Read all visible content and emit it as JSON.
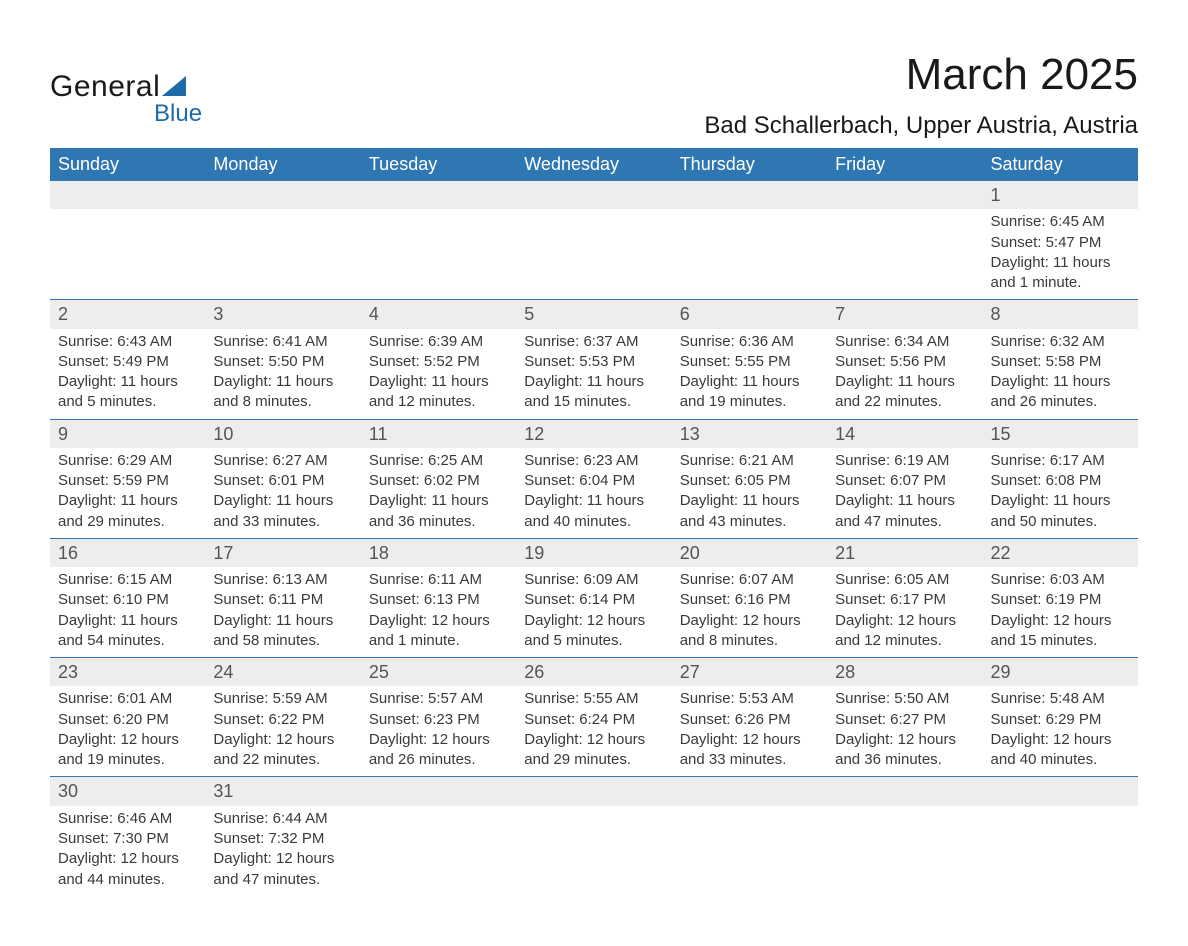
{
  "logo": {
    "text_top": "General",
    "text_sub": "Blue"
  },
  "title": "March 2025",
  "location": "Bad Schallerbach, Upper Austria, Austria",
  "colors": {
    "header_bg": "#2e77b3",
    "header_text": "#ffffff",
    "daynum_bg": "#ededed",
    "row_border": "#2e77b3",
    "text": "#3a3a3a",
    "logo_blue": "#1c6ba8"
  },
  "day_headers": [
    "Sunday",
    "Monday",
    "Tuesday",
    "Wednesday",
    "Thursday",
    "Friday",
    "Saturday"
  ],
  "weeks": [
    {
      "days": [
        null,
        null,
        null,
        null,
        null,
        null,
        {
          "n": "1",
          "sunrise": "Sunrise: 6:45 AM",
          "sunset": "Sunset: 5:47 PM",
          "dl1": "Daylight: 11 hours",
          "dl2": "and 1 minute."
        }
      ]
    },
    {
      "days": [
        {
          "n": "2",
          "sunrise": "Sunrise: 6:43 AM",
          "sunset": "Sunset: 5:49 PM",
          "dl1": "Daylight: 11 hours",
          "dl2": "and 5 minutes."
        },
        {
          "n": "3",
          "sunrise": "Sunrise: 6:41 AM",
          "sunset": "Sunset: 5:50 PM",
          "dl1": "Daylight: 11 hours",
          "dl2": "and 8 minutes."
        },
        {
          "n": "4",
          "sunrise": "Sunrise: 6:39 AM",
          "sunset": "Sunset: 5:52 PM",
          "dl1": "Daylight: 11 hours",
          "dl2": "and 12 minutes."
        },
        {
          "n": "5",
          "sunrise": "Sunrise: 6:37 AM",
          "sunset": "Sunset: 5:53 PM",
          "dl1": "Daylight: 11 hours",
          "dl2": "and 15 minutes."
        },
        {
          "n": "6",
          "sunrise": "Sunrise: 6:36 AM",
          "sunset": "Sunset: 5:55 PM",
          "dl1": "Daylight: 11 hours",
          "dl2": "and 19 minutes."
        },
        {
          "n": "7",
          "sunrise": "Sunrise: 6:34 AM",
          "sunset": "Sunset: 5:56 PM",
          "dl1": "Daylight: 11 hours",
          "dl2": "and 22 minutes."
        },
        {
          "n": "8",
          "sunrise": "Sunrise: 6:32 AM",
          "sunset": "Sunset: 5:58 PM",
          "dl1": "Daylight: 11 hours",
          "dl2": "and 26 minutes."
        }
      ]
    },
    {
      "days": [
        {
          "n": "9",
          "sunrise": "Sunrise: 6:29 AM",
          "sunset": "Sunset: 5:59 PM",
          "dl1": "Daylight: 11 hours",
          "dl2": "and 29 minutes."
        },
        {
          "n": "10",
          "sunrise": "Sunrise: 6:27 AM",
          "sunset": "Sunset: 6:01 PM",
          "dl1": "Daylight: 11 hours",
          "dl2": "and 33 minutes."
        },
        {
          "n": "11",
          "sunrise": "Sunrise: 6:25 AM",
          "sunset": "Sunset: 6:02 PM",
          "dl1": "Daylight: 11 hours",
          "dl2": "and 36 minutes."
        },
        {
          "n": "12",
          "sunrise": "Sunrise: 6:23 AM",
          "sunset": "Sunset: 6:04 PM",
          "dl1": "Daylight: 11 hours",
          "dl2": "and 40 minutes."
        },
        {
          "n": "13",
          "sunrise": "Sunrise: 6:21 AM",
          "sunset": "Sunset: 6:05 PM",
          "dl1": "Daylight: 11 hours",
          "dl2": "and 43 minutes."
        },
        {
          "n": "14",
          "sunrise": "Sunrise: 6:19 AM",
          "sunset": "Sunset: 6:07 PM",
          "dl1": "Daylight: 11 hours",
          "dl2": "and 47 minutes."
        },
        {
          "n": "15",
          "sunrise": "Sunrise: 6:17 AM",
          "sunset": "Sunset: 6:08 PM",
          "dl1": "Daylight: 11 hours",
          "dl2": "and 50 minutes."
        }
      ]
    },
    {
      "days": [
        {
          "n": "16",
          "sunrise": "Sunrise: 6:15 AM",
          "sunset": "Sunset: 6:10 PM",
          "dl1": "Daylight: 11 hours",
          "dl2": "and 54 minutes."
        },
        {
          "n": "17",
          "sunrise": "Sunrise: 6:13 AM",
          "sunset": "Sunset: 6:11 PM",
          "dl1": "Daylight: 11 hours",
          "dl2": "and 58 minutes."
        },
        {
          "n": "18",
          "sunrise": "Sunrise: 6:11 AM",
          "sunset": "Sunset: 6:13 PM",
          "dl1": "Daylight: 12 hours",
          "dl2": "and 1 minute."
        },
        {
          "n": "19",
          "sunrise": "Sunrise: 6:09 AM",
          "sunset": "Sunset: 6:14 PM",
          "dl1": "Daylight: 12 hours",
          "dl2": "and 5 minutes."
        },
        {
          "n": "20",
          "sunrise": "Sunrise: 6:07 AM",
          "sunset": "Sunset: 6:16 PM",
          "dl1": "Daylight: 12 hours",
          "dl2": "and 8 minutes."
        },
        {
          "n": "21",
          "sunrise": "Sunrise: 6:05 AM",
          "sunset": "Sunset: 6:17 PM",
          "dl1": "Daylight: 12 hours",
          "dl2": "and 12 minutes."
        },
        {
          "n": "22",
          "sunrise": "Sunrise: 6:03 AM",
          "sunset": "Sunset: 6:19 PM",
          "dl1": "Daylight: 12 hours",
          "dl2": "and 15 minutes."
        }
      ]
    },
    {
      "days": [
        {
          "n": "23",
          "sunrise": "Sunrise: 6:01 AM",
          "sunset": "Sunset: 6:20 PM",
          "dl1": "Daylight: 12 hours",
          "dl2": "and 19 minutes."
        },
        {
          "n": "24",
          "sunrise": "Sunrise: 5:59 AM",
          "sunset": "Sunset: 6:22 PM",
          "dl1": "Daylight: 12 hours",
          "dl2": "and 22 minutes."
        },
        {
          "n": "25",
          "sunrise": "Sunrise: 5:57 AM",
          "sunset": "Sunset: 6:23 PM",
          "dl1": "Daylight: 12 hours",
          "dl2": "and 26 minutes."
        },
        {
          "n": "26",
          "sunrise": "Sunrise: 5:55 AM",
          "sunset": "Sunset: 6:24 PM",
          "dl1": "Daylight: 12 hours",
          "dl2": "and 29 minutes."
        },
        {
          "n": "27",
          "sunrise": "Sunrise: 5:53 AM",
          "sunset": "Sunset: 6:26 PM",
          "dl1": "Daylight: 12 hours",
          "dl2": "and 33 minutes."
        },
        {
          "n": "28",
          "sunrise": "Sunrise: 5:50 AM",
          "sunset": "Sunset: 6:27 PM",
          "dl1": "Daylight: 12 hours",
          "dl2": "and 36 minutes."
        },
        {
          "n": "29",
          "sunrise": "Sunrise: 5:48 AM",
          "sunset": "Sunset: 6:29 PM",
          "dl1": "Daylight: 12 hours",
          "dl2": "and 40 minutes."
        }
      ]
    },
    {
      "days": [
        {
          "n": "30",
          "sunrise": "Sunrise: 6:46 AM",
          "sunset": "Sunset: 7:30 PM",
          "dl1": "Daylight: 12 hours",
          "dl2": "and 44 minutes."
        },
        {
          "n": "31",
          "sunrise": "Sunrise: 6:44 AM",
          "sunset": "Sunset: 7:32 PM",
          "dl1": "Daylight: 12 hours",
          "dl2": "and 47 minutes."
        },
        null,
        null,
        null,
        null,
        null
      ]
    }
  ]
}
